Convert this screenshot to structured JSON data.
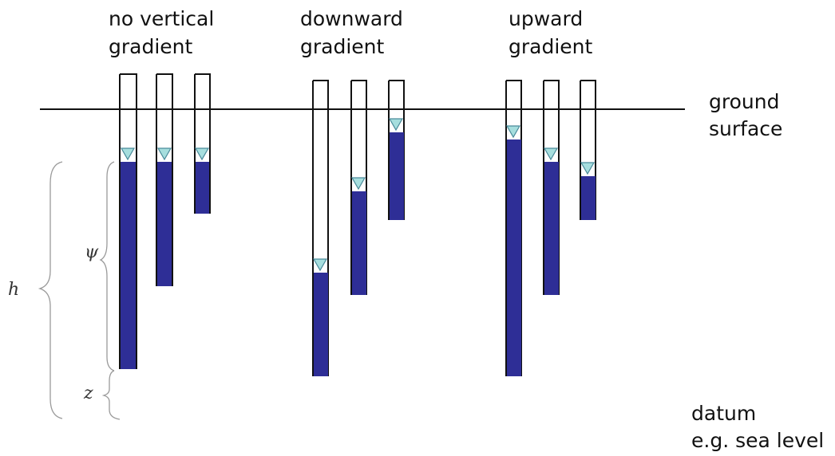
{
  "labels": {
    "group1_line1": "no vertical",
    "group1_line2": "gradient",
    "group2_line1": "downward",
    "group2_line2": "gradient",
    "group3_line1": "upward",
    "group3_line2": "gradient",
    "ground_line1": "ground",
    "ground_line2": "surface",
    "datum_line1": "datum",
    "datum_line2": "e.g. sea level",
    "h_symbol": "h",
    "psi_symbol": "ψ",
    "z_symbol": "z"
  },
  "colors": {
    "water": "#2e2e96",
    "water_level_marker": "#a6dede",
    "outline": "#111111",
    "brace": "#9a9a9a"
  }
}
